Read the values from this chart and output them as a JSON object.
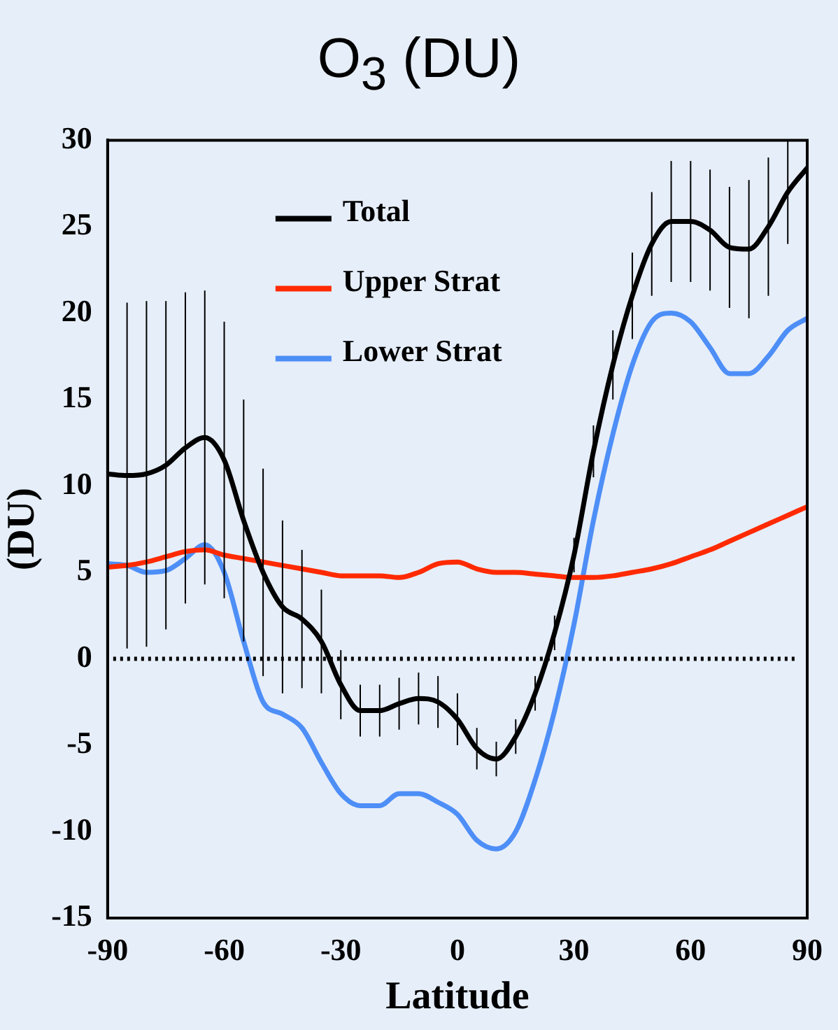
{
  "chart_data": {
    "type": "line",
    "title": "O$_{3}$ (DU)",
    "xlabel": "Latitude",
    "ylabel": "(DU)",
    "x": [
      -90,
      -85,
      -80,
      -75,
      -70,
      -65,
      -60,
      -55,
      -50,
      -45,
      -40,
      -35,
      -30,
      -25,
      -20,
      -15,
      -10,
      -5,
      0,
      5,
      10,
      15,
      20,
      25,
      30,
      35,
      40,
      45,
      50,
      55,
      60,
      65,
      70,
      75,
      80,
      85,
      90
    ],
    "series": [
      {
        "name": "Total",
        "color": "#000000",
        "values": [
          10.7,
          10.6,
          10.7,
          11.2,
          12.2,
          12.8,
          11.5,
          8,
          5,
          3,
          2.3,
          1,
          -1.5,
          -3,
          -3,
          -2.6,
          -2.3,
          -2.5,
          -3.5,
          -5.2,
          -5.8,
          -4.5,
          -2,
          1.5,
          6,
          12,
          17,
          21,
          24,
          25.3,
          25.3,
          24.8,
          23.8,
          23.7,
          25,
          27,
          28.4
        ],
        "errors": [
          10,
          10,
          10,
          9.5,
          9,
          8.5,
          8,
          7,
          6,
          5,
          4,
          3,
          2,
          1.5,
          1.5,
          1.5,
          1.5,
          1.5,
          1.5,
          1.2,
          1,
          1,
          1,
          1,
          1,
          1.5,
          2,
          2.5,
          3,
          3.5,
          3.5,
          3.5,
          3.5,
          4,
          4,
          3,
          1.6
        ]
      },
      {
        "name": "Upper Strat",
        "color": "#ff2a00",
        "values": [
          5.3,
          5.4,
          5.6,
          5.9,
          6.2,
          6.3,
          6,
          5.8,
          5.6,
          5.4,
          5.2,
          5,
          4.8,
          4.8,
          4.8,
          4.7,
          5,
          5.5,
          5.6,
          5.2,
          5,
          5,
          4.9,
          4.8,
          4.7,
          4.7,
          4.8,
          5,
          5.2,
          5.5,
          5.9,
          6.3,
          6.8,
          7.3,
          7.8,
          8.3,
          8.8
        ]
      },
      {
        "name": "Lower Strat",
        "color": "#4d8ef7",
        "values": [
          5.5,
          5.4,
          5,
          5.1,
          5.8,
          6.6,
          5,
          1,
          -2.5,
          -3.2,
          -4,
          -6,
          -7.8,
          -8.5,
          -8.5,
          -7.8,
          -7.8,
          -8.3,
          -9,
          -10.5,
          -11,
          -10,
          -7,
          -3,
          2,
          8,
          13,
          17,
          19.5,
          20,
          19.5,
          18,
          16.5,
          16.5,
          17.5,
          19,
          19.7
        ]
      }
    ],
    "xlim": [
      -90,
      90
    ],
    "xticks": [
      -90,
      -60,
      -30,
      0,
      30,
      60,
      90
    ],
    "ylim": [
      -15,
      30
    ],
    "yticks": [
      -15,
      -10,
      -5,
      0,
      5,
      10,
      15,
      20,
      25,
      30
    ],
    "ref_lines": [
      {
        "axis": "y",
        "value": 0,
        "color": "#000000",
        "line_style": "dotted"
      }
    ],
    "legend": "top left",
    "grid": false,
    "marker": "none",
    "line_style": "solid"
  }
}
